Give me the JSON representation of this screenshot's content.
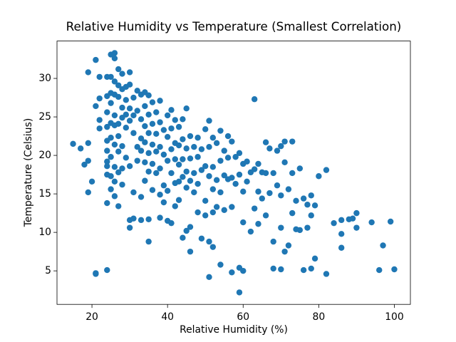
{
  "chart_data": {
    "type": "scatter",
    "title": "Relative Humidity vs Temperature (Smallest Correlation)",
    "x_label": "Relative Humidity (%)",
    "y_label": "Temperature (Celsius)",
    "color": "#1f77b4",
    "xlim": [
      10.75,
      104.25
    ],
    "ylim": [
      0.645,
      34.855
    ],
    "xticks": [
      20,
      40,
      60,
      80,
      100
    ],
    "yticks": [
      5,
      10,
      15,
      20,
      25,
      30
    ],
    "x": [
      15,
      17,
      18,
      19,
      19,
      19,
      19,
      20,
      21,
      21,
      21,
      21,
      22,
      22,
      22,
      22,
      24,
      24,
      24,
      24,
      24,
      24,
      24,
      24,
      24,
      24,
      24,
      25,
      25,
      25,
      25,
      25,
      25,
      25,
      25,
      25,
      26,
      26,
      26,
      26,
      26,
      26,
      26,
      26,
      26,
      26,
      27,
      27,
      27,
      27,
      27,
      27,
      27,
      27,
      28,
      28,
      28,
      28,
      28,
      28,
      28,
      29,
      29,
      29,
      29,
      29,
      30,
      30,
      30,
      30,
      30,
      30,
      30,
      31,
      31,
      31,
      31,
      31,
      32,
      32,
      32,
      32,
      33,
      33,
      33,
      33,
      33,
      33,
      34,
      34,
      34,
      34,
      34,
      34,
      35,
      35,
      35,
      35,
      35,
      35,
      35,
      36,
      36,
      36,
      36,
      36,
      37,
      37,
      37,
      37,
      38,
      38,
      38,
      38,
      38,
      38,
      39,
      39,
      39,
      39,
      40,
      40,
      40,
      40,
      40,
      41,
      41,
      41,
      41,
      41,
      42,
      42,
      42,
      42,
      42,
      43,
      43,
      43,
      43,
      43,
      44,
      44,
      44,
      44,
      44,
      45,
      45,
      45,
      45,
      45,
      46,
      46,
      46,
      46,
      46,
      47,
      47,
      47,
      48,
      48,
      48,
      48,
      49,
      49,
      49,
      50,
      50,
      50,
      50,
      51,
      51,
      51,
      51,
      51,
      52,
      52,
      52,
      52,
      52,
      53,
      53,
      53,
      54,
      54,
      54,
      54,
      55,
      55,
      55,
      56,
      56,
      56,
      57,
      57,
      57,
      57,
      58,
      58,
      59,
      59,
      59,
      59,
      60,
      60,
      60,
      60,
      61,
      61,
      62,
      62,
      63,
      63,
      63,
      64,
      64,
      64,
      65,
      65,
      66,
      66,
      66,
      67,
      67,
      68,
      68,
      68,
      69,
      69,
      70,
      70,
      70,
      70,
      71,
      71,
      71,
      72,
      72,
      73,
      73,
      73,
      74,
      74,
      75,
      75,
      76,
      76,
      77,
      77,
      78,
      78,
      78,
      79,
      79,
      80,
      82,
      82,
      84,
      86,
      86,
      86,
      88,
      89,
      90,
      90,
      94,
      96,
      97,
      99,
      100
    ],
    "values": [
      21.5,
      20.9,
      18.8,
      30.8,
      21.6,
      19.3,
      15.2,
      16.6,
      32.4,
      26.4,
      4.6,
      4.7,
      30.2,
      27.4,
      24.6,
      23.5,
      30.2,
      27.7,
      25.6,
      23.7,
      21.9,
      20.6,
      19.2,
      18.6,
      17.5,
      13.8,
      5.1,
      33.1,
      30.2,
      28.1,
      26.8,
      24.2,
      22.3,
      19.8,
      17.3,
      15.6,
      33.3,
      32.6,
      29.6,
      27.9,
      25.2,
      23.9,
      21.4,
      18.5,
      16.6,
      14.7,
      31.2,
      29.1,
      27.6,
      24.1,
      22.5,
      20.5,
      17.8,
      13.4,
      30.6,
      28.6,
      26.2,
      24.9,
      21.2,
      18.3,
      16.2,
      28.9,
      27.2,
      25.3,
      23.6,
      19.7,
      30.8,
      29.2,
      26.1,
      24.5,
      18.6,
      11.6,
      10.6,
      27.5,
      25.2,
      22.9,
      15.2,
      11.8,
      28.4,
      25.8,
      21.1,
      19.3,
      27.9,
      24.7,
      22.2,
      20.6,
      14.6,
      11.6,
      28.2,
      26.4,
      23.8,
      21.7,
      19.1,
      16.7,
      27.8,
      25.3,
      22.9,
      20.3,
      17.9,
      11.7,
      8.8,
      26.9,
      24.1,
      21.4,
      18.9,
      15.5,
      25.6,
      22.8,
      20.5,
      17.7,
      27.1,
      24.3,
      21.1,
      18.3,
      14.9,
      11.9,
      23.3,
      20.1,
      16.1,
      13.9,
      25.2,
      22.4,
      19.3,
      15.4,
      11.5,
      25.9,
      23.5,
      20.8,
      17.7,
      11.2,
      24.6,
      21.6,
      19.5,
      16.4,
      13.4,
      23.7,
      21.3,
      18.8,
      16.6,
      14.2,
      24.7,
      22.1,
      19.5,
      17.2,
      9.3,
      26.1,
      20.9,
      17.9,
      15.8,
      10.2,
      22.5,
      19.6,
      16.7,
      10.7,
      7.5,
      21.1,
      17.7,
      15.2,
      22.3,
      19.8,
      16.3,
      12.6,
      20.8,
      18.1,
      9.2,
      23.4,
      18.6,
      14.1,
      12.2,
      24.5,
      21.1,
      17.3,
      8.8,
      4.2,
      22.3,
      18.5,
      15.6,
      12.6,
      8.1,
      21.6,
      16.8,
      13.3,
      23.2,
      19.3,
      15.2,
      5.8,
      20.6,
      17.4,
      12.9,
      22.5,
      19.7,
      16.9,
      21.8,
      17.1,
      13.3,
      4.8,
      19.8,
      16.3,
      20.3,
      17.5,
      5.4,
      2.2,
      18.9,
      15.3,
      11.3,
      5.0,
      19.2,
      16.6,
      17.8,
      10.1,
      27.3,
      18.2,
      13.1,
      18.9,
      15.3,
      11.1,
      17.8,
      14.4,
      21.7,
      17.7,
      12.2,
      20.9,
      15.1,
      17.7,
      8.8,
      5.3,
      20.6,
      16.1,
      21.2,
      14.8,
      10.6,
      5.2,
      21.8,
      19.1,
      7.5,
      15.6,
      8.3,
      21.8,
      17.7,
      12.5,
      14.1,
      10.4,
      18.3,
      10.3,
      14.4,
      5.1,
      10.6,
      13.6,
      14.8,
      12.2,
      5.3,
      13.5,
      6.6,
      17.3,
      18.1,
      4.6,
      11.2,
      11.6,
      9.8,
      8.0,
      11.7,
      11.8,
      10.6,
      12.5,
      11.3,
      5.1,
      8.3,
      11.4,
      5.2
    ]
  }
}
